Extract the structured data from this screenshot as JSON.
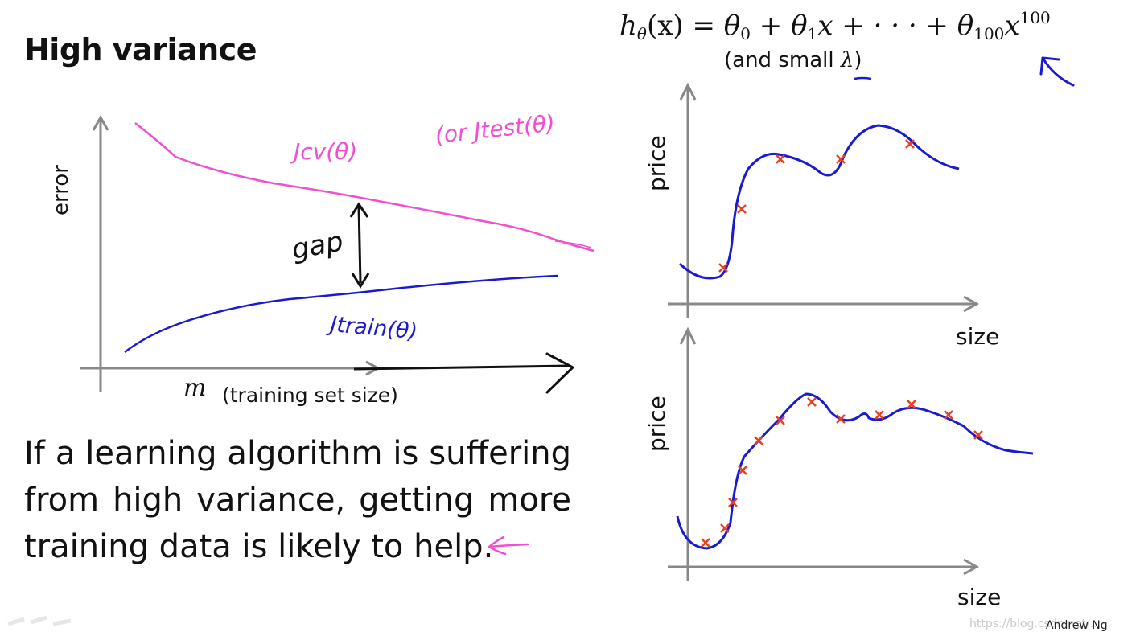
{
  "title": "High variance",
  "formula": {
    "h": "h",
    "h_sub": "θ",
    "arg": "(x) = ",
    "t0": "θ",
    "t0_sub": "0",
    "plus1": " + ",
    "t1": "θ",
    "t1_sub": "1",
    "x1": "x + · · · + ",
    "t100": "θ",
    "t100_sub": "100",
    "x100": "x",
    "x100_sup": "100"
  },
  "small_lambda": {
    "prefix": "(and small ",
    "lambda": "λ",
    "suffix": ")"
  },
  "learning_curve": {
    "y_label": "error",
    "x_var": "m",
    "x_label": "(training set size)",
    "cv_label": "Jcv(θ)",
    "test_label": "(or Jtest(θ)",
    "train_label": "Jtrain(θ)",
    "gap_label": "gap"
  },
  "plot_top": {
    "y_label": "price",
    "x_label": "size"
  },
  "plot_bottom": {
    "y_label": "price",
    "x_label": "size"
  },
  "body_text": "If a learning algorithm is suffering from high variance, getting more training data is likely to help.",
  "watermark": {
    "author": "Andrew Ng",
    "url": "https://blog.csdn.net/..."
  },
  "colors": {
    "cv": "#f050d0",
    "train": "#1a1ad0",
    "points": "#e84020",
    "axis": "#888888",
    "fit": "#1a1ad0"
  }
}
